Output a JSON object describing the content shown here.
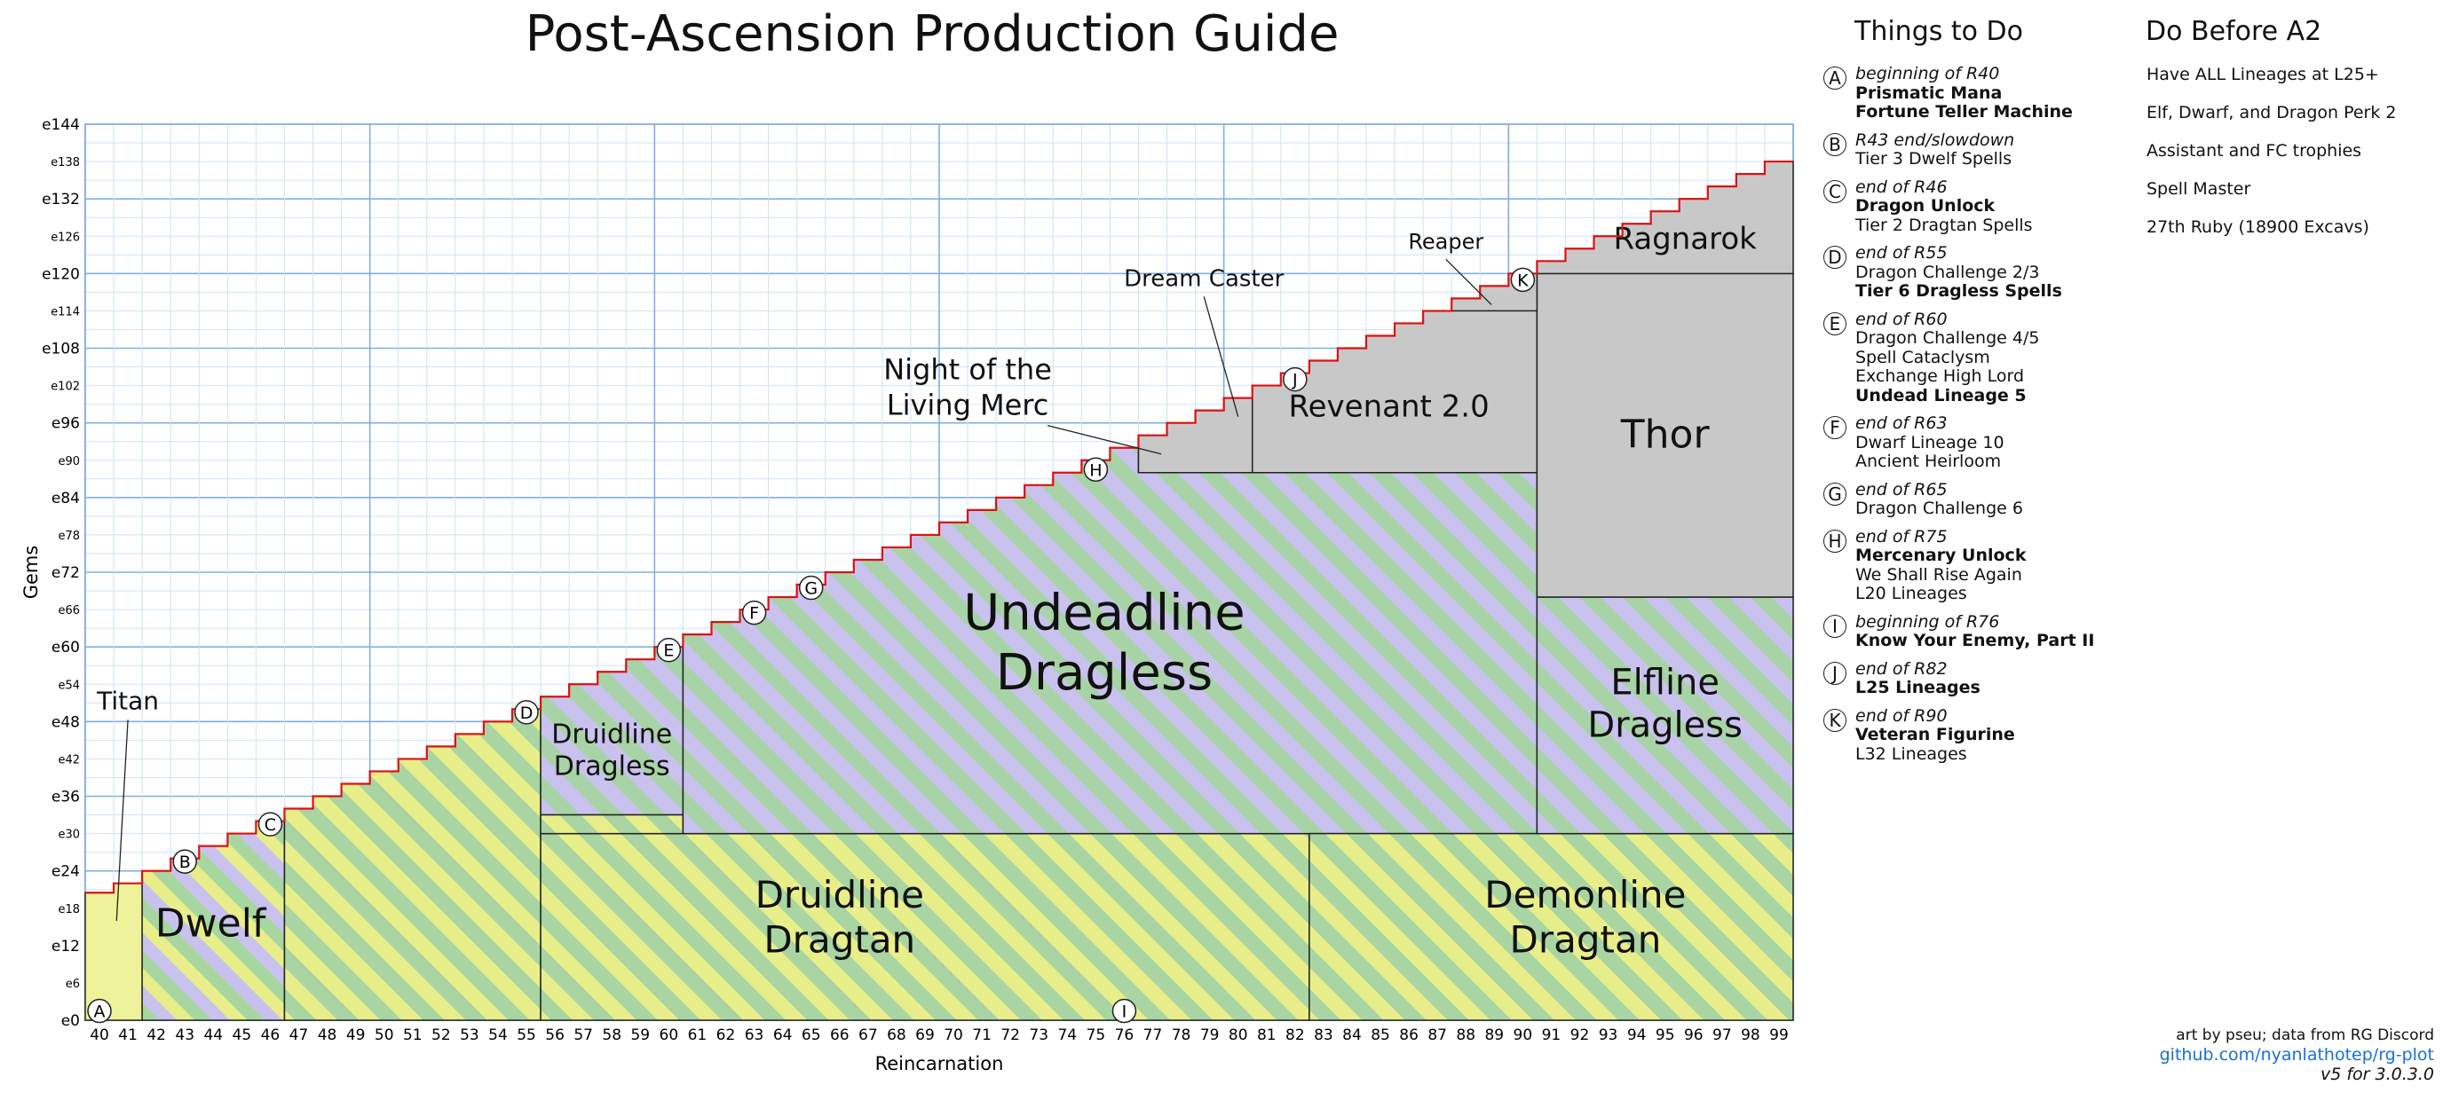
{
  "title": "Post-Ascension Production Guide",
  "colors": {
    "grid_major": "#7fb0e0",
    "grid_minor": "#cfe2f5",
    "frontier": "#dd1111",
    "stripe_yellow": "#e8ee8a",
    "stripe_green": "#a7d6a0",
    "stripe_purple": "#c8c0ee",
    "gray": "#c8c8c8",
    "border": "#222222"
  },
  "chart_data": {
    "type": "area",
    "xlabel": "Reincarnation",
    "ylabel": "Gems",
    "xlim": [
      40,
      100
    ],
    "ylim": [
      0,
      144
    ],
    "x_ticks": [
      40,
      41,
      42,
      43,
      44,
      45,
      46,
      47,
      48,
      49,
      50,
      51,
      52,
      53,
      54,
      55,
      56,
      57,
      58,
      59,
      60,
      61,
      62,
      63,
      64,
      65,
      66,
      67,
      68,
      69,
      70,
      71,
      72,
      73,
      74,
      75,
      76,
      77,
      78,
      79,
      80,
      81,
      82,
      83,
      84,
      85,
      86,
      87,
      88,
      89,
      90,
      91,
      92,
      93,
      94,
      95,
      96,
      97,
      98,
      99
    ],
    "y_ticks_major": [
      {
        "v": 0,
        "label": "e0"
      },
      {
        "v": 12,
        "label": "e12"
      },
      {
        "v": 24,
        "label": "e24"
      },
      {
        "v": 36,
        "label": "e36"
      },
      {
        "v": 48,
        "label": "e48"
      },
      {
        "v": 60,
        "label": "e60"
      },
      {
        "v": 72,
        "label": "e72"
      },
      {
        "v": 84,
        "label": "e84"
      },
      {
        "v": 96,
        "label": "e96"
      },
      {
        "v": 108,
        "label": "e108"
      },
      {
        "v": 120,
        "label": "e120"
      },
      {
        "v": 132,
        "label": "e132"
      },
      {
        "v": 144,
        "label": "e144"
      }
    ],
    "y_ticks_minor": [
      {
        "v": 6,
        "label": "e6"
      },
      {
        "v": 18,
        "label": "e18"
      },
      {
        "v": 30,
        "label": "e30"
      },
      {
        "v": 42,
        "label": "e42"
      },
      {
        "v": 54,
        "label": "e54"
      },
      {
        "v": 66,
        "label": "e66"
      },
      {
        "v": 78,
        "label": "e78"
      },
      {
        "v": 90,
        "label": "e90"
      },
      {
        "v": 102,
        "label": "e102"
      },
      {
        "v": 114,
        "label": "e114"
      },
      {
        "v": 126,
        "label": "e126"
      },
      {
        "v": 138,
        "label": "e138"
      }
    ],
    "frontier": {
      "x": [
        40,
        41,
        42,
        43,
        44,
        45,
        46,
        47,
        48,
        49,
        50,
        51,
        52,
        53,
        54,
        55,
        56,
        57,
        58,
        59,
        60,
        61,
        62,
        63,
        64,
        65,
        66,
        67,
        68,
        69,
        70,
        71,
        72,
        73,
        74,
        75,
        76,
        77,
        78,
        79,
        80,
        81,
        82,
        83,
        84,
        85,
        86,
        87,
        88,
        89,
        90,
        91,
        92,
        93,
        94,
        95,
        96,
        97,
        98,
        99
      ],
      "y": [
        20.5,
        22,
        24,
        26,
        28,
        30,
        32,
        34,
        36,
        38,
        40,
        42,
        44,
        46,
        48,
        50,
        52,
        54,
        56,
        58,
        60,
        62,
        64,
        66,
        68,
        70,
        72,
        74,
        76,
        78,
        80,
        82,
        84,
        86,
        88,
        90,
        92,
        94,
        96,
        98,
        100,
        102,
        104,
        106,
        108,
        110,
        112,
        114,
        116,
        118,
        120,
        122,
        124,
        126,
        128,
        130,
        132,
        134,
        136,
        138
      ]
    },
    "regions": [
      {
        "label": "",
        "x0": 40,
        "x1": 42,
        "y0": 0,
        "ytop": "frontier",
        "style": "yellow"
      },
      {
        "label": "Dwelf",
        "x0": 42,
        "x1": 47,
        "y0": 0,
        "ytop": "frontier",
        "style": "yellow-green-purple",
        "lx": 44.4,
        "ly": 13.5,
        "fs": 44
      },
      {
        "label": "",
        "x0": 47,
        "x1": 56,
        "y0": 0,
        "ytop": "frontier",
        "style": "yellow-green"
      },
      {
        "label": "Druidline|Dragless",
        "x0": 56,
        "x1": 61,
        "y0": 33,
        "ytop": "frontier",
        "style": "green-purple",
        "lx": 58.5,
        "ly": 42,
        "fs": 30
      },
      {
        "label": "Druidline|Dragtan",
        "x0": 56,
        "x1": 83,
        "y0": 0,
        "ytop": 30,
        "style": "yellow-green",
        "lx": 66.5,
        "ly": 14.5,
        "fs": 42
      },
      {
        "label": "",
        "x0": 56,
        "x1": 61,
        "y0": 30,
        "ytop": 33,
        "style": "yellow-green"
      },
      {
        "label": "Undeadline|Dragless",
        "x0": 61,
        "x1": 91,
        "y0": 30,
        "ytop": "frontier-undead",
        "style": "green-purple",
        "lx": 75.8,
        "ly": 58,
        "fs": 56
      },
      {
        "label": "Demonline|Dragtan",
        "x0": 83,
        "x1": 100,
        "y0": 0,
        "ytop": 30,
        "style": "yellow-green",
        "lx": 92.7,
        "ly": 14.5,
        "fs": 42
      },
      {
        "label": "Elfline|Dragless",
        "x0": 91,
        "x1": 100,
        "y0": 30,
        "ytop": 68,
        "style": "green-purple",
        "lx": 95.5,
        "ly": 49,
        "fs": 40
      },
      {
        "label": "Revenant 2.0",
        "x0": 81,
        "x1": 91,
        "y0": 88,
        "ytop": "frontier",
        "style": "gray",
        "lx": 85.8,
        "ly": 97,
        "fs": 34
      },
      {
        "label": "",
        "x0": 77,
        "x1": 81,
        "y0": 88,
        "ytop": "frontier",
        "style": "gray"
      },
      {
        "label": "Thor",
        "x0": 91,
        "x1": 100,
        "y0": 68,
        "ytop": 120,
        "style": "gray",
        "lx": 95.5,
        "ly": 92,
        "fs": 44
      },
      {
        "label": "",
        "x0": 88,
        "x1": 91,
        "y0": 114,
        "ytop": "frontier",
        "style": "gray"
      },
      {
        "label": "Ragnarok",
        "x0": 91,
        "x1": 100,
        "y0": 120,
        "ytop": "frontier",
        "style": "gray",
        "lx": 96.2,
        "ly": 124,
        "fs": 34
      }
    ],
    "annotations": [
      {
        "text": "Titan",
        "tx": 41.5,
        "ty": 50,
        "ax": 41.1,
        "ay": 16,
        "fs": 28
      },
      {
        "text": "Night of the|Living Merc",
        "tx": 71,
        "ty": 103,
        "ax": 77.8,
        "ay": 91,
        "fs": 32
      },
      {
        "text": "Dream Caster",
        "tx": 79.3,
        "ty": 118,
        "ax": 80.5,
        "ay": 97,
        "fs": 26
      },
      {
        "text": "Reaper",
        "tx": 87.8,
        "ty": 124,
        "ax": 89.4,
        "ay": 115,
        "fs": 24
      }
    ],
    "markers": [
      {
        "letter": "A",
        "x": 40.5,
        "y": 1.5
      },
      {
        "letter": "B",
        "x": 43.5,
        "y": 25.5
      },
      {
        "letter": "C",
        "x": 46.5,
        "y": 31.5
      },
      {
        "letter": "D",
        "x": 55.5,
        "y": 49.5
      },
      {
        "letter": "E",
        "x": 60.5,
        "y": 59.5
      },
      {
        "letter": "F",
        "x": 63.5,
        "y": 65.5
      },
      {
        "letter": "G",
        "x": 65.5,
        "y": 69.5
      },
      {
        "letter": "H",
        "x": 75.5,
        "y": 88.5
      },
      {
        "letter": "I",
        "x": 76.5,
        "y": 1.5
      },
      {
        "letter": "J",
        "x": 82.5,
        "y": 103
      },
      {
        "letter": "K",
        "x": 90.5,
        "y": 119
      }
    ]
  },
  "things_to_do": {
    "heading": "Things to Do",
    "items": [
      {
        "letter": "A",
        "when": "beginning of R40",
        "lines": [
          {
            "t": "Prismatic Mana",
            "b": true
          },
          {
            "t": "Fortune Teller Machine",
            "b": true
          }
        ]
      },
      {
        "letter": "B",
        "when": "R43 end/slowdown",
        "lines": [
          {
            "t": "Tier 3 Dwelf Spells",
            "b": false
          }
        ]
      },
      {
        "letter": "C",
        "when": "end of R46",
        "lines": [
          {
            "t": "Dragon Unlock",
            "b": true
          },
          {
            "t": "Tier 2 Dragtan Spells",
            "b": false
          }
        ]
      },
      {
        "letter": "D",
        "when": "end of R55",
        "lines": [
          {
            "t": "Dragon Challenge 2/3",
            "b": false
          },
          {
            "t": "Tier 6 Dragless Spells",
            "b": true
          }
        ]
      },
      {
        "letter": "E",
        "when": "end of R60",
        "lines": [
          {
            "t": "Dragon Challenge 4/5",
            "b": false
          },
          {
            "t": "Spell Cataclysm",
            "b": false
          },
          {
            "t": "Exchange High Lord",
            "b": false
          },
          {
            "t": "Undead Lineage 5",
            "b": true
          }
        ]
      },
      {
        "letter": "F",
        "when": "end of R63",
        "lines": [
          {
            "t": "Dwarf Lineage 10",
            "b": false
          },
          {
            "t": "Ancient Heirloom",
            "b": false
          }
        ]
      },
      {
        "letter": "G",
        "when": "end of R65",
        "lines": [
          {
            "t": "Dragon Challenge 6",
            "b": false
          }
        ]
      },
      {
        "letter": "H",
        "when": "end of R75",
        "lines": [
          {
            "t": "Mercenary Unlock",
            "b": true
          },
          {
            "t": "We Shall Rise Again",
            "b": false
          },
          {
            "t": "L20 Lineages",
            "b": false
          }
        ]
      },
      {
        "letter": "I",
        "when": "beginning of R76",
        "lines": [
          {
            "t": "Know Your Enemy, Part II",
            "b": true
          }
        ]
      },
      {
        "letter": "J",
        "when": "end of R82",
        "lines": [
          {
            "t": "L25 Lineages",
            "b": true
          }
        ]
      },
      {
        "letter": "K",
        "when": "end of R90",
        "lines": [
          {
            "t": "Veteran Figurine",
            "b": true
          },
          {
            "t": "L32 Lineages",
            "b": false
          }
        ]
      }
    ]
  },
  "do_before": {
    "heading": "Do Before A2",
    "items": [
      "Have ALL Lineages at L25+",
      "Elf, Dwarf, and Dragon Perk 2",
      "Assistant and FC trophies",
      "Spell Master",
      "27th Ruby (18900 Excavs)"
    ]
  },
  "footer": {
    "credit": "art by pseu; data from RG Discord",
    "link": "github.com/nyanlathotep/rg-plot",
    "version": "v5 for 3.0.3.0"
  }
}
